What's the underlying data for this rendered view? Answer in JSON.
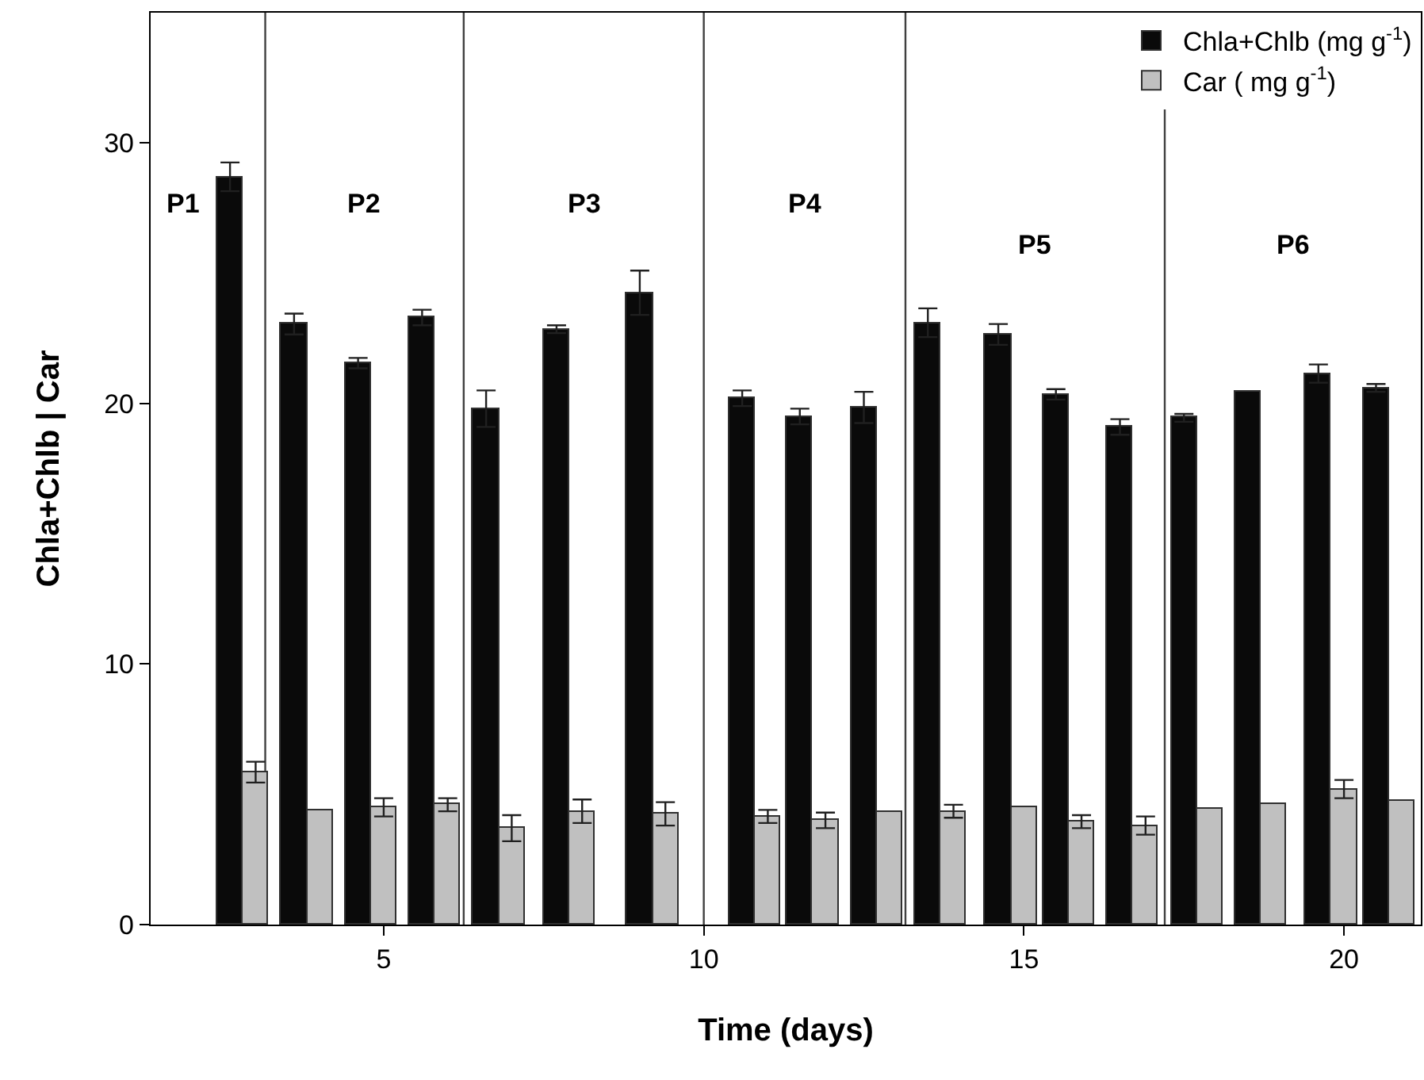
{
  "chart_data": {
    "type": "bar",
    "xlabel": "Time (days)",
    "ylabel": "Chla+Chlb | Car",
    "x": [
      2.8,
      3.8,
      4.8,
      5.8,
      6.8,
      7.9,
      9.2,
      10.8,
      11.7,
      12.7,
      13.7,
      14.8,
      15.7,
      16.7,
      17.7,
      18.7,
      19.8,
      20.7
    ],
    "series": [
      {
        "name": "Chla+Chlb (mg g$^{-1}$)",
        "color": "#0a0a0a",
        "values": [
          28.7,
          23.05,
          21.55,
          23.3,
          19.8,
          22.85,
          24.25,
          20.2,
          19.5,
          19.85,
          23.1,
          22.65,
          20.35,
          19.1,
          19.45,
          20.45,
          21.15,
          20.6
        ],
        "errors": [
          0.55,
          0.4,
          0.2,
          0.3,
          0.7,
          0.15,
          0.85,
          0.3,
          0.3,
          0.6,
          0.55,
          0.4,
          0.2,
          0.3,
          0.15,
          null,
          0.35,
          0.15
        ]
      },
      {
        "name": "Car ( mg g$^{-1}$)",
        "color": "#c0c0c0",
        "values": [
          5.85,
          4.4,
          4.5,
          4.6,
          3.7,
          4.35,
          4.25,
          4.15,
          4.0,
          4.3,
          4.35,
          4.5,
          3.95,
          3.8,
          4.45,
          4.6,
          5.2,
          4.75
        ],
        "errors": [
          0.4,
          null,
          0.35,
          0.25,
          0.5,
          0.45,
          0.45,
          0.25,
          0.3,
          null,
          0.25,
          null,
          0.25,
          0.35,
          null,
          null,
          0.35,
          null
        ]
      }
    ],
    "xlim": [
      1.36,
      21.2
    ],
    "xticks": [
      5,
      10,
      15,
      20
    ],
    "ylim": [
      0,
      35
    ],
    "yticks": [
      0,
      10,
      20,
      30
    ],
    "ref_lines": [
      {
        "axis": "x",
        "value": 3.15,
        "color": "#404040"
      },
      {
        "axis": "x",
        "value": 6.25,
        "color": "#404040"
      },
      {
        "axis": "x",
        "value": 10,
        "color": "#404040"
      },
      {
        "axis": "x",
        "value": 13.15,
        "color": "#404040"
      },
      {
        "axis": "x",
        "value": 17.2,
        "color": "#404040"
      }
    ],
    "annotations": [
      "P1",
      "P2",
      "P3",
      "P4",
      "P5",
      "P6"
    ],
    "grid": false,
    "legend": "top right"
  }
}
